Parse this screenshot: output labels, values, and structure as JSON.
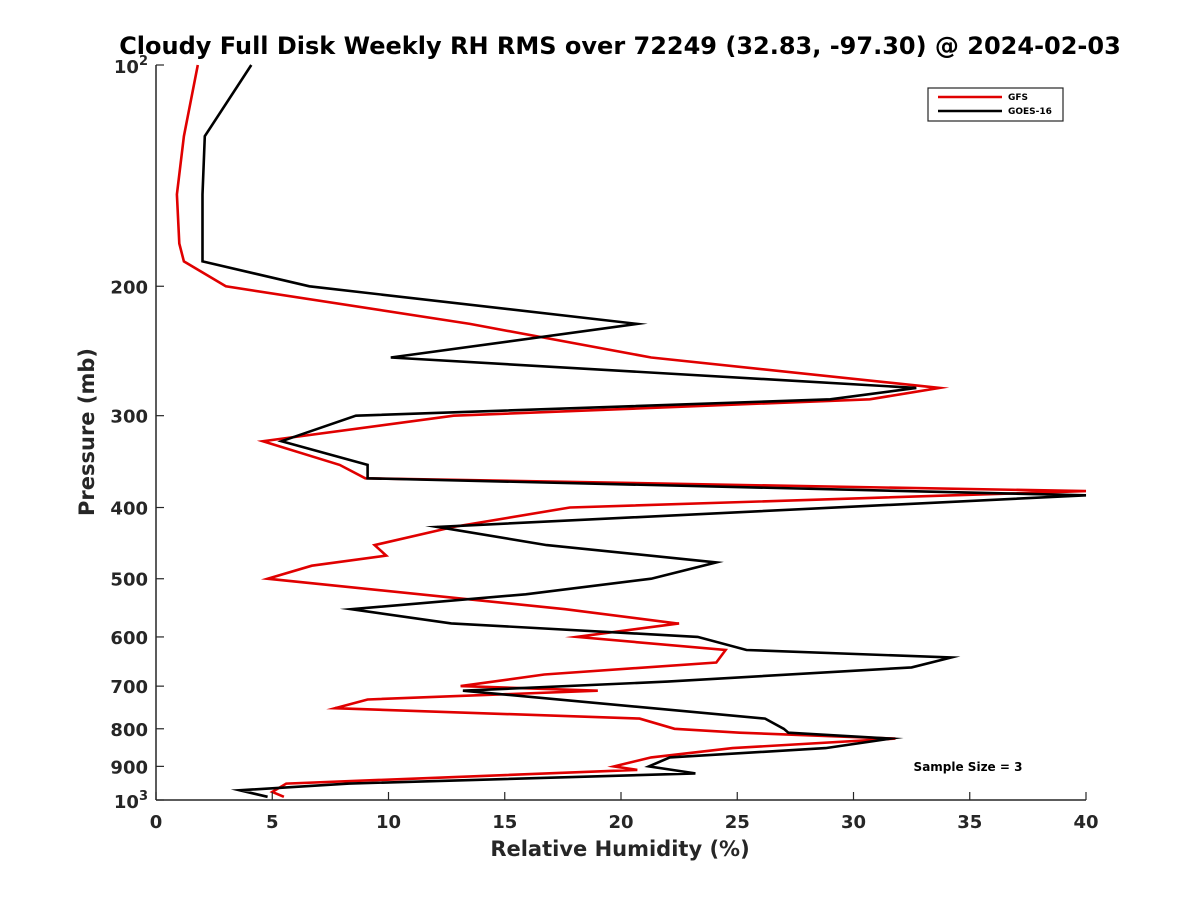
{
  "chart_data": {
    "type": "line",
    "title": "Cloudy Full Disk Weekly RH RMS over 72249 (32.83, -97.30) @ 2024-02-03",
    "xlabel": "Relative Humidity (%)",
    "ylabel": "Pressure (mb)",
    "xlim": [
      0,
      40
    ],
    "ylim": [
      100,
      1000
    ],
    "y_scale": "log",
    "y_reversed": true,
    "xticks": [
      0,
      5,
      10,
      15,
      20,
      25,
      30,
      35,
      40
    ],
    "xtick_labels": [
      "0",
      "5",
      "10",
      "15",
      "20",
      "25",
      "30",
      "35",
      "40"
    ],
    "yticks": [
      200,
      300,
      400,
      500,
      600,
      700,
      800,
      900
    ],
    "ytick_labels": [
      "200",
      "300",
      "400",
      "500",
      "600",
      "700",
      "800",
      "900"
    ],
    "ytick_decades": [
      {
        "value": 100,
        "base": "10",
        "exp": "2"
      },
      {
        "value": 1000,
        "base": "10",
        "exp": "3"
      }
    ],
    "grid": false,
    "legend_position": "top-right",
    "annotation": "Sample Size = 3",
    "series": [
      {
        "name": "GFS",
        "color": "#e00000",
        "points": [
          [
            1.8,
            100
          ],
          [
            1.2,
            125
          ],
          [
            0.9,
            150
          ],
          [
            1.0,
            175
          ],
          [
            1.2,
            185
          ],
          [
            3.0,
            200
          ],
          [
            13.5,
            225
          ],
          [
            21.3,
            250
          ],
          [
            33.7,
            275
          ],
          [
            30.7,
            285
          ],
          [
            12.8,
            300
          ],
          [
            4.6,
            325
          ],
          [
            7.9,
            350
          ],
          [
            9.0,
            365
          ],
          [
            40.0,
            380
          ],
          [
            17.8,
            400
          ],
          [
            12.8,
            425
          ],
          [
            9.4,
            450
          ],
          [
            9.9,
            465
          ],
          [
            6.7,
            480
          ],
          [
            4.8,
            500
          ],
          [
            17.6,
            550
          ],
          [
            22.4,
            575
          ],
          [
            22.5,
            575
          ],
          [
            18.1,
            600
          ],
          [
            24.5,
            625
          ],
          [
            24.1,
            650
          ],
          [
            16.7,
            675
          ],
          [
            13.1,
            700
          ],
          [
            19.0,
            710
          ],
          [
            9.1,
            730
          ],
          [
            7.7,
            750
          ],
          [
            20.8,
            775
          ],
          [
            22.3,
            800
          ],
          [
            25.1,
            810
          ],
          [
            31.8,
            825
          ],
          [
            24.8,
            850
          ],
          [
            21.3,
            875
          ],
          [
            19.7,
            900
          ],
          [
            20.7,
            910
          ],
          [
            5.6,
            950
          ],
          [
            5.0,
            975
          ],
          [
            5.5,
            990
          ]
        ]
      },
      {
        "name": "GOES-16",
        "color": "#000000",
        "points": [
          [
            4.1,
            100
          ],
          [
            2.1,
            125
          ],
          [
            2.0,
            150
          ],
          [
            2.0,
            175
          ],
          [
            2.0,
            185
          ],
          [
            6.6,
            200
          ],
          [
            20.7,
            225
          ],
          [
            10.1,
            250
          ],
          [
            32.7,
            275
          ],
          [
            29.0,
            285
          ],
          [
            8.6,
            300
          ],
          [
            5.4,
            325
          ],
          [
            9.1,
            350
          ],
          [
            9.1,
            365
          ],
          [
            40.0,
            385
          ],
          [
            12.1,
            425
          ],
          [
            16.8,
            450
          ],
          [
            24.1,
            475
          ],
          [
            21.3,
            500
          ],
          [
            15.9,
            525
          ],
          [
            8.4,
            550
          ],
          [
            12.7,
            575
          ],
          [
            23.3,
            600
          ],
          [
            25.4,
            625
          ],
          [
            34.2,
            640
          ],
          [
            32.5,
            660
          ],
          [
            22.0,
            690
          ],
          [
            13.2,
            710
          ],
          [
            26.2,
            775
          ],
          [
            27.0,
            800
          ],
          [
            27.2,
            810
          ],
          [
            31.6,
            825
          ],
          [
            28.8,
            850
          ],
          [
            22.1,
            875
          ],
          [
            21.2,
            900
          ],
          [
            23.2,
            920
          ],
          [
            8.3,
            950
          ],
          [
            3.6,
            970
          ],
          [
            4.8,
            990
          ]
        ]
      }
    ]
  }
}
